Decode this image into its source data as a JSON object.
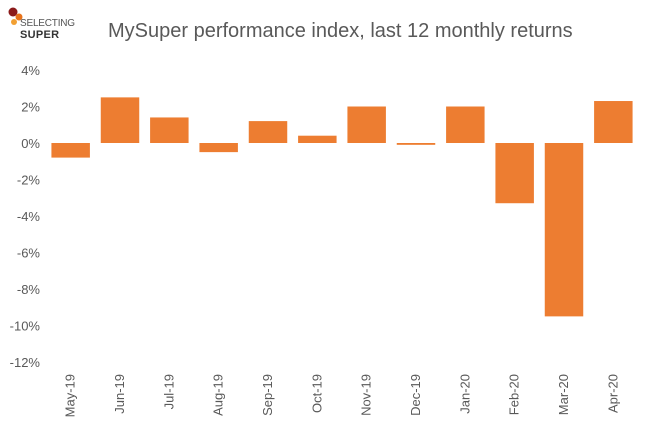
{
  "logo": {
    "line1": "SELECTING",
    "line2": "SUPER",
    "colors": [
      "#8b1a1a",
      "#e8731a",
      "#f2a033"
    ]
  },
  "chart_data": {
    "type": "bar",
    "title": "MySuper performance index, last 12 monthly returns",
    "xlabel": "",
    "ylabel": "",
    "categories": [
      "May-19",
      "Jun-19",
      "Jul-19",
      "Aug-19",
      "Sep-19",
      "Oct-19",
      "Nov-19",
      "Dec-19",
      "Jan-20",
      "Feb-20",
      "Mar-20",
      "Apr-20"
    ],
    "values": [
      -0.8,
      2.5,
      1.4,
      -0.5,
      1.2,
      0.4,
      2.0,
      -0.1,
      2.0,
      -3.3,
      -9.5,
      2.3
    ],
    "ylim": [
      -12,
      4
    ],
    "yticks": [
      4,
      2,
      0,
      -2,
      -4,
      -6,
      -8,
      -10,
      -12
    ],
    "ytick_format": "%",
    "bar_color": "#ed7d31",
    "grid": false,
    "legend": "none"
  }
}
